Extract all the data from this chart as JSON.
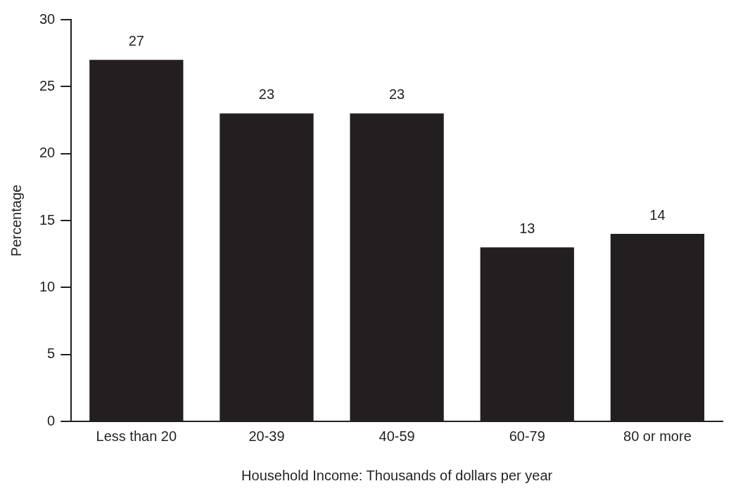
{
  "chart_data": {
    "type": "bar",
    "xlabel": "Household Income: Thousands of dollars per year",
    "ylabel": "Percentage",
    "categories": [
      "Less than 20",
      "20-39",
      "40-59",
      "60-79",
      "80 or more"
    ],
    "values": [
      27,
      23,
      23,
      13,
      14
    ],
    "color": "#231f20",
    "ylim": [
      0,
      30
    ],
    "yticks": [
      0,
      5,
      10,
      15,
      20,
      25,
      30
    ],
    "grid": false,
    "legend": false,
    "data_labels": true
  }
}
